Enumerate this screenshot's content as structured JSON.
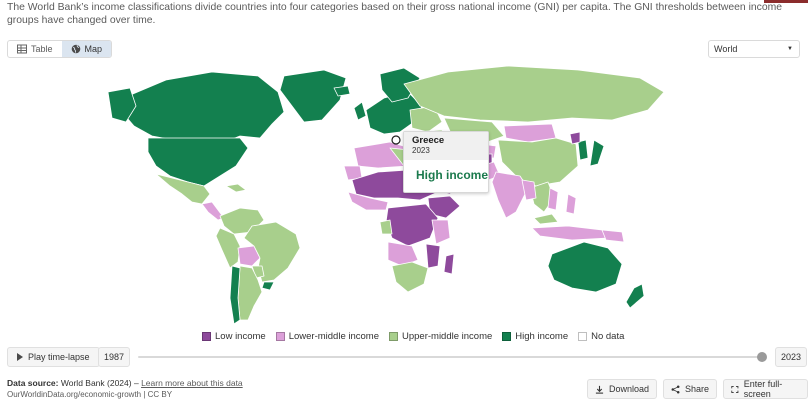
{
  "subtitle": "The World Bank’s income classifications divide countries into four categories based on their gross national income (GNI) per capita. The GNI thresholds between income groups have changed over time.",
  "view_toggle": {
    "table_label": "Table",
    "map_label": "Map",
    "active": "Map"
  },
  "region_select": {
    "value": "World"
  },
  "colors": {
    "low": "#8e4a9c",
    "lower_middle": "#dca0d9",
    "upper_middle": "#a8cf8c",
    "high": "#13804f",
    "no_data": "#ffffff",
    "water": "#ffffff"
  },
  "tooltip": {
    "country": "Greece",
    "year": "2023",
    "value": "High income"
  },
  "legend": [
    {
      "label": "Low income",
      "color": "#8e4a9c"
    },
    {
      "label": "Lower-middle income",
      "color": "#dca0d9"
    },
    {
      "label": "Upper-middle income",
      "color": "#a8cf8c"
    },
    {
      "label": "High income",
      "color": "#13804f"
    },
    {
      "label": "No data",
      "color": "#ffffff"
    }
  ],
  "timeline": {
    "play_label": "Play time-lapse",
    "start_year": "1987",
    "end_year": "2023",
    "selected_year": "2023"
  },
  "footer": {
    "source_label": "Data source:",
    "source_text": "World Bank (2024) –",
    "learn_more": "Learn more about this data",
    "url": "OurWorldinData.org/economic-growth | CC BY"
  },
  "actions": {
    "download": "Download",
    "share": "Share",
    "fullscreen": "Enter full-screen"
  }
}
